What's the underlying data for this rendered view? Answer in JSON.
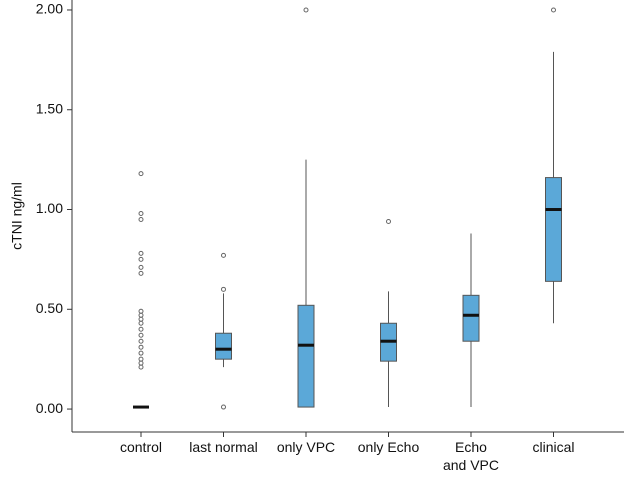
{
  "chart_data": {
    "type": "box",
    "y_label": "cTNI ng/ml",
    "color": "#5ba8d8",
    "ylim": [
      -0.115,
      2.05
    ],
    "yticks": [
      {
        "value": 0,
        "label": "0.00"
      },
      {
        "value": 0.5,
        "label": "0.50"
      },
      {
        "value": 1,
        "label": "1.00"
      },
      {
        "value": 1.5,
        "label": "1.50"
      },
      {
        "value": 2,
        "label": "2.00"
      }
    ],
    "categories": [
      "control",
      "last normal",
      "only VPC",
      "only Echo",
      "Echo\nand VPC",
      "clinical"
    ],
    "boxes": [
      {
        "whisker_low": 0.01,
        "q1": 0.01,
        "median": 0.01,
        "q3": 0.01,
        "whisker_high": 0.01,
        "outliers": [
          1.18,
          0.98,
          0.95,
          0.78,
          0.75,
          0.71,
          0.68,
          0.49,
          0.47,
          0.45,
          0.43,
          0.4,
          0.37,
          0.34,
          0.31,
          0.28,
          0.25,
          0.23,
          0.21
        ]
      },
      {
        "whisker_low": 0.21,
        "q1": 0.25,
        "median": 0.3,
        "q3": 0.38,
        "whisker_high": 0.58,
        "outliers": [
          0.77,
          0.6,
          0.01
        ]
      },
      {
        "whisker_low": 0.01,
        "q1": 0.01,
        "median": 0.32,
        "q3": 0.52,
        "whisker_high": 1.25,
        "outliers": [
          2.0
        ]
      },
      {
        "whisker_low": 0.01,
        "q1": 0.24,
        "median": 0.34,
        "q3": 0.43,
        "whisker_high": 0.59,
        "outliers": [
          0.94
        ]
      },
      {
        "whisker_low": 0.01,
        "q1": 0.34,
        "median": 0.47,
        "q3": 0.57,
        "whisker_high": 0.88,
        "outliers": []
      },
      {
        "whisker_low": 0.43,
        "q1": 0.64,
        "median": 1.0,
        "q3": 1.16,
        "whisker_high": 1.79,
        "outliers": [
          2.0
        ]
      }
    ]
  }
}
